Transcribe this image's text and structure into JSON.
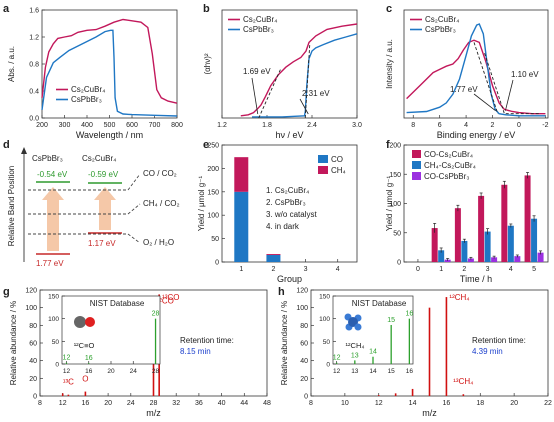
{
  "colors": {
    "cscubr": "#c2185b",
    "cspbbr": "#1f77c4",
    "co_cspbbr": "#9b30e0",
    "nist": "#2ca02c",
    "ms": "#d01010",
    "retention": "#1a3ecc",
    "band_green": "#2e9a2e",
    "band_red": "#c62828",
    "arrow": "#f5c8a8"
  },
  "chart_data": [
    {
      "panel": "a",
      "type": "line",
      "xlabel": "Wavelength / nm",
      "ylabel": "Abs. / a.u.",
      "xlim": [
        200,
        800
      ],
      "ylim": [
        0,
        1.6
      ],
      "xticks": [
        200,
        300,
        400,
        500,
        600,
        700,
        800
      ],
      "yticks": [
        0.0,
        0.4,
        0.8,
        1.2,
        1.6
      ],
      "ytick_labels": [
        "0.0",
        "0.4",
        "0.8",
        "1.2",
        "1.6"
      ],
      "legend": "bottom-left",
      "series": [
        {
          "name": "Cs₂CuBr₄",
          "color": "cscubr",
          "x": [
            200,
            215,
            230,
            250,
            270,
            300,
            330,
            360,
            400,
            440,
            480,
            520,
            560,
            600,
            640,
            670,
            690,
            710,
            730,
            760,
            800
          ],
          "y": [
            0.3,
            0.75,
            0.98,
            1.1,
            1.18,
            1.2,
            1.22,
            1.27,
            1.3,
            1.31,
            1.36,
            1.42,
            1.46,
            1.44,
            1.42,
            1.34,
            0.95,
            0.42,
            0.3,
            0.25,
            0.22
          ]
        },
        {
          "name": "CsPbBr₃",
          "color": "cspbbr",
          "x": [
            200,
            220,
            250,
            280,
            320,
            380,
            440,
            480,
            505,
            515,
            520,
            525,
            535,
            560,
            600,
            700,
            800
          ],
          "y": [
            0.12,
            0.6,
            0.82,
            0.9,
            1.0,
            1.1,
            1.2,
            1.28,
            1.3,
            1.3,
            0.9,
            0.3,
            0.1,
            0.06,
            0.05,
            0.04,
            0.03
          ]
        }
      ]
    },
    {
      "panel": "b",
      "type": "line",
      "xlabel": "hν / eV",
      "ylabel": "(αhν)²",
      "xlim": [
        1.2,
        3.0
      ],
      "ylim": [
        0,
        1
      ],
      "xticks": [
        1.2,
        1.8,
        2.4,
        3.0
      ],
      "xtick_labels": [
        "1.2",
        "1.8",
        "2.4",
        "3.0"
      ],
      "legend": "top-left",
      "annotations": [
        {
          "text": "1.69 eV",
          "x": 1.69
        },
        {
          "text": "2.31 eV",
          "x": 2.31
        }
      ],
      "series": [
        {
          "name": "Cs₂CuBr₄",
          "color": "cscubr",
          "x": [
            1.45,
            1.55,
            1.62,
            1.68,
            1.72,
            1.78,
            1.85,
            1.95,
            2.05,
            2.15,
            2.25,
            2.32,
            2.36,
            2.45,
            2.6,
            2.8,
            3.0
          ],
          "y": [
            0.02,
            0.03,
            0.05,
            0.09,
            0.12,
            0.2,
            0.3,
            0.4,
            0.47,
            0.52,
            0.56,
            0.62,
            0.7,
            0.76,
            0.82,
            0.85,
            0.87
          ]
        },
        {
          "name": "CsPbBr₃",
          "color": "cspbbr",
          "x": [
            1.6,
            2.0,
            2.3,
            2.31,
            2.33,
            2.36,
            2.4,
            2.45,
            2.55,
            2.7,
            2.85,
            3.0
          ],
          "y": [
            0.01,
            0.01,
            0.02,
            0.06,
            0.3,
            0.55,
            0.62,
            0.65,
            0.68,
            0.72,
            0.75,
            0.78
          ]
        }
      ]
    },
    {
      "panel": "c",
      "type": "line",
      "xlabel": "Binding energy / eV",
      "ylabel": "Intensity / a.u.",
      "xlim": [
        8,
        -2
      ],
      "ylim": [
        0,
        1
      ],
      "xticks": [
        8,
        6,
        4,
        2,
        0,
        -2
      ],
      "legend": "top-left",
      "annotations": [
        {
          "text": "1.77 eV",
          "x": 1.77
        },
        {
          "text": "1.10 eV",
          "x": 1.1
        }
      ],
      "series": [
        {
          "name": "Cs₂CuBr₄",
          "color": "cscubr",
          "x": [
            8.5,
            7.5,
            6.5,
            6.0,
            5.5,
            5.0,
            4.6,
            4.2,
            3.8,
            3.4,
            3.0,
            2.5,
            2.0,
            1.5,
            1.1,
            0.5,
            0,
            -1,
            -2
          ],
          "y": [
            0.18,
            0.3,
            0.42,
            0.45,
            0.48,
            0.5,
            0.55,
            0.63,
            0.7,
            0.72,
            0.7,
            0.52,
            0.3,
            0.14,
            0.08,
            0.06,
            0.05,
            0.04,
            0.04
          ]
        },
        {
          "name": "CsPbBr₃",
          "color": "cspbbr",
          "x": [
            8.5,
            7.0,
            6.0,
            5.5,
            5.0,
            4.5,
            4.0,
            3.6,
            3.2,
            3.0,
            2.7,
            2.4,
            2.1,
            1.8,
            1.5,
            1.0,
            0,
            -2
          ],
          "y": [
            0.05,
            0.06,
            0.1,
            0.14,
            0.22,
            0.36,
            0.58,
            0.76,
            0.86,
            0.87,
            0.78,
            0.5,
            0.22,
            0.08,
            0.04,
            0.03,
            0.02,
            0.02
          ]
        }
      ]
    },
    {
      "panel": "d",
      "type": "diagram",
      "ylabel": "Relative Band Position",
      "materials": [
        "CsPbBr₃",
        "Cs₂CuBr₄"
      ],
      "cb_labels": [
        "-0.54 eV",
        "-0.59 eV"
      ],
      "gaps": [
        "1.77 eV",
        "1.17 eV"
      ],
      "redox": [
        "CO / CO₂",
        "CH₄ / CO₂",
        "O₂ / H₂O"
      ]
    },
    {
      "panel": "e",
      "type": "bar",
      "xlabel": "Group",
      "ylabel": "Yield / μmol g⁻¹",
      "categories": [
        "1",
        "2",
        "3",
        "4"
      ],
      "ylim": [
        0,
        250
      ],
      "yticks": [
        0,
        50,
        100,
        150,
        200,
        250
      ],
      "legend": "top-right",
      "notes": [
        "1. Cs₂CuBr₄",
        "2. CsPbBr₃",
        "3. w/o catalyst",
        "4. in dark"
      ],
      "series": [
        {
          "name": "CO",
          "color": "cspbbr",
          "values": [
            150,
            15,
            0,
            0
          ]
        },
        {
          "name": "CH₄",
          "color": "cscubr",
          "values": [
            74,
            2,
            0,
            0
          ]
        }
      ]
    },
    {
      "panel": "f",
      "type": "bar",
      "xlabel": "Time / h",
      "ylabel": "Yield / μmol g⁻¹",
      "categories": [
        "0",
        "1",
        "2",
        "3",
        "4",
        "5"
      ],
      "ylim": [
        0,
        200
      ],
      "yticks": [
        0,
        50,
        100,
        150,
        200
      ],
      "legend": "top-left",
      "series": [
        {
          "name": "CO-Cs₂CuBr₄",
          "color": "cscubr",
          "values": [
            0,
            58,
            92,
            113,
            132,
            148
          ]
        },
        {
          "name": "CH₄-Cs₂CuBr₄",
          "color": "cspbbr",
          "values": [
            0,
            20,
            36,
            52,
            62,
            74
          ]
        },
        {
          "name": "CO-CsPbBr₃",
          "color": "co_cspbbr",
          "values": [
            0,
            4,
            6,
            8,
            10,
            16
          ]
        }
      ]
    },
    {
      "panel": "g",
      "type": "stem",
      "xlabel": "m/z",
      "ylabel": "Relative abundance / %",
      "xlim": [
        8,
        48
      ],
      "ylim": [
        0,
        120
      ],
      "xticks": [
        8,
        12,
        16,
        20,
        24,
        28,
        32,
        36,
        40,
        44,
        48
      ],
      "yticks": [
        0,
        20,
        40,
        60,
        80,
        100,
        120
      ],
      "x": [
        12,
        13,
        16,
        28,
        29
      ],
      "y": [
        3,
        1.5,
        5,
        100,
        115
      ],
      "labels": [
        {
          "text": "¹³C",
          "x": 13
        },
        {
          "text": "O",
          "x": 16
        },
        {
          "text": "¹²CO",
          "x": 28
        },
        {
          "text": "¹³CO",
          "x": 29
        }
      ],
      "retention_label": "Retention time:",
      "retention_value": "8.15 min",
      "inset": {
        "title": "NIST Database",
        "molecule": "¹²C≡O",
        "xlim": [
          12,
          28
        ],
        "ylim": [
          0,
          150
        ],
        "xticks": [
          12,
          16,
          20,
          24,
          28
        ],
        "yticks": [
          0,
          50,
          100,
          150
        ],
        "x": [
          12,
          16,
          28
        ],
        "y": [
          3,
          2,
          100
        ],
        "labels": [
          "12",
          "16",
          "28"
        ]
      }
    },
    {
      "panel": "h",
      "type": "stem",
      "xlabel": "m/z",
      "ylabel": "Relative abundance / %",
      "xlim": [
        8,
        22
      ],
      "ylim": [
        0,
        120
      ],
      "xticks": [
        8,
        10,
        12,
        14,
        16,
        18,
        20,
        22
      ],
      "yticks": [
        0,
        20,
        40,
        60,
        80,
        100,
        120
      ],
      "x": [
        12,
        13,
        14,
        15,
        16,
        17
      ],
      "y": [
        1,
        3,
        8,
        100,
        112,
        2
      ],
      "labels": [
        {
          "text": "¹²CH₄",
          "x": 16
        },
        {
          "text": "¹³CH₄",
          "x": 17
        }
      ],
      "retention_label": "Retention time:",
      "retention_value": "4.39 min",
      "inset": {
        "title": "NIST Database",
        "molecule": "¹²CH₄",
        "xlim": [
          12,
          16
        ],
        "ylim": [
          0,
          150
        ],
        "xticks": [
          12,
          13,
          14,
          15,
          16
        ],
        "yticks": [
          0,
          50,
          100,
          150
        ],
        "x": [
          12,
          13,
          14,
          15,
          16
        ],
        "y": [
          3,
          8,
          16,
          86,
          100
        ],
        "labels": [
          "12",
          "13",
          "14",
          "15",
          "16"
        ]
      }
    }
  ]
}
